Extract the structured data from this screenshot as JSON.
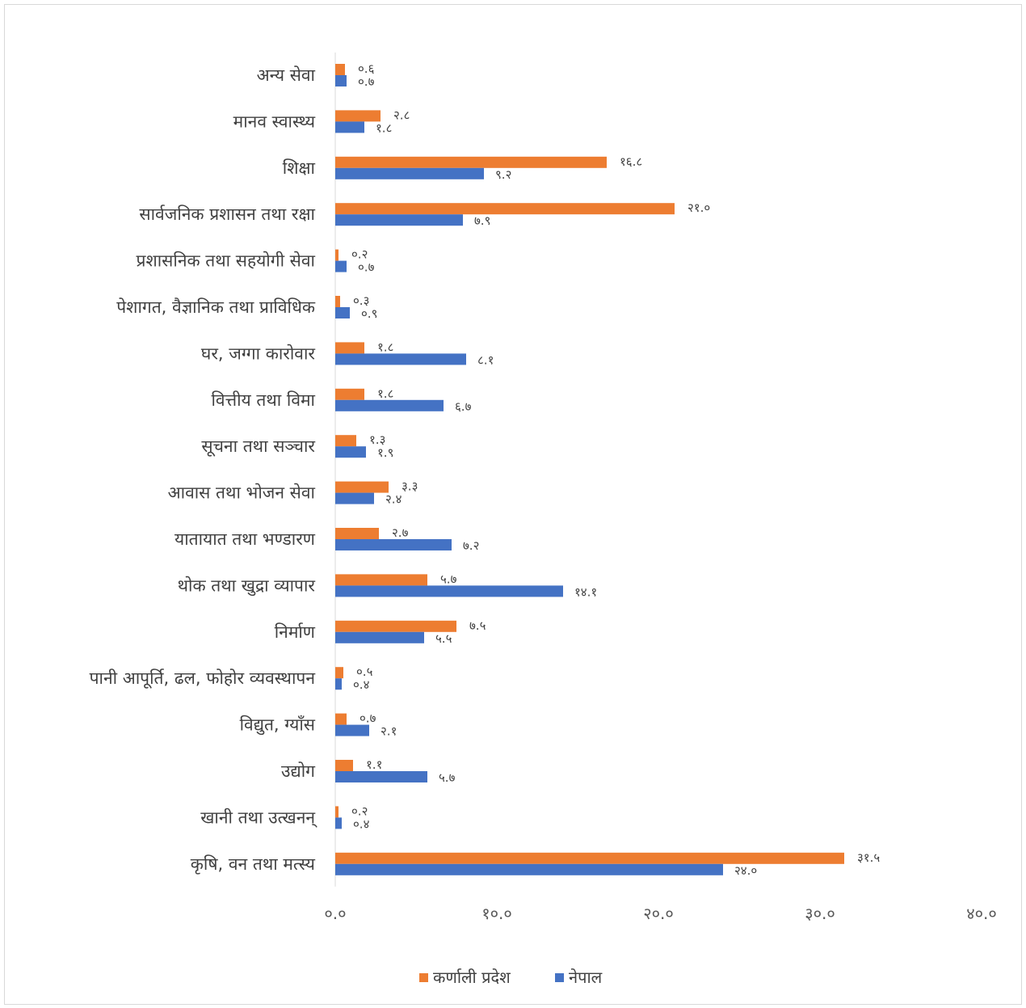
{
  "chart_data": {
    "type": "bar",
    "orientation": "horizontal",
    "categories": [
      "अन्य सेवा",
      "मानव स्वास्थ्य",
      "शिक्षा",
      "सार्वजनिक प्रशासन तथा रक्षा",
      "प्रशासनिक तथा सहयोगी सेवा",
      "पेशागत, वैज्ञानिक तथा प्राविधिक",
      "घर, जग्गा कारोवार",
      "वित्तीय तथा विमा",
      "सूचना तथा सञ्चार",
      "आवास तथा भोजन सेवा",
      "यातायात तथा भण्डारण",
      "थोक तथा खुद्रा व्यापार",
      "निर्माण",
      "पानी आपूर्ति, ढल, फोहोर व्यवस्थापन",
      "विद्युत, ग्याँस",
      "उद्योग",
      "खानी तथा उत्खनन्",
      "कृषि, वन तथा मत्स्य"
    ],
    "series": [
      {
        "name": "कर्णाली प्रदेश",
        "color": "#ed7d31",
        "values": [
          0.6,
          2.8,
          16.8,
          21.0,
          0.2,
          0.3,
          1.8,
          1.8,
          1.3,
          3.3,
          2.7,
          5.7,
          7.5,
          0.5,
          0.7,
          1.1,
          0.2,
          31.5
        ],
        "labels": [
          "०.६",
          "२.८",
          "१६.८",
          "२१.०",
          "०.२",
          "०.३",
          "१.८",
          "१.८",
          "१.३",
          "३.३",
          "२.७",
          "५.७",
          "७.५",
          "०.५",
          "०.७",
          "१.१",
          "०.२",
          "३१.५"
        ]
      },
      {
        "name": "नेपाल",
        "color": "#4472c4",
        "values": [
          0.7,
          1.8,
          9.2,
          7.9,
          0.7,
          0.9,
          8.1,
          6.7,
          1.9,
          2.4,
          7.2,
          14.1,
          5.5,
          0.4,
          2.1,
          5.7,
          0.4,
          24.0
        ],
        "labels": [
          "०.७",
          "१.८",
          "९.२",
          "७.९",
          "०.७",
          "०.९",
          "८.१",
          "६.७",
          "१.९",
          "२.४",
          "७.२",
          "१४.१",
          "५.५",
          "०.४",
          "२.१",
          "५.७",
          "०.४",
          "२४.०"
        ]
      }
    ],
    "xlim": [
      0,
      40
    ],
    "x_ticks": [
      0,
      10,
      20,
      30,
      40
    ],
    "x_tick_labels": [
      "०.०",
      "१०.०",
      "२०.०",
      "३०.०",
      "४०.०"
    ],
    "grid": false,
    "legend_position": "bottom",
    "title": "",
    "xlabel": "",
    "ylabel": ""
  }
}
